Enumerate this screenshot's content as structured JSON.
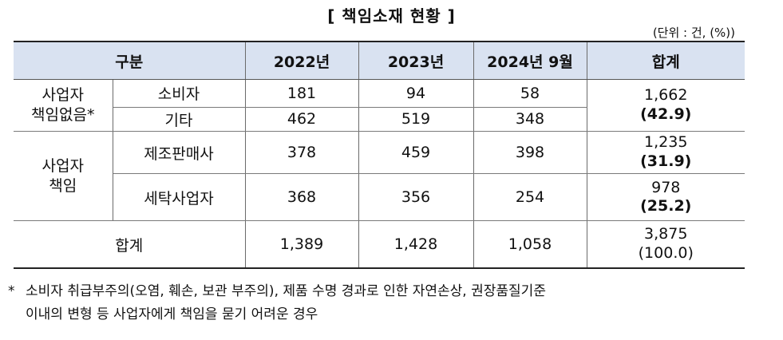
{
  "title": "[ 책임소재 현황 ]",
  "unit": "(단위 : 건, (%))",
  "header": {
    "category": "구분",
    "years": [
      "2022년",
      "2023년",
      "2024년 9월"
    ],
    "total": "합계"
  },
  "groups": [
    {
      "label_line1": "사업자",
      "label_line2": "책임없음*",
      "rows": [
        {
          "name": "소비자",
          "values": [
            "181",
            "94",
            "58"
          ]
        },
        {
          "name": "기타",
          "values": [
            "462",
            "519",
            "348"
          ]
        }
      ],
      "total": "1,662",
      "percent": "(42.9)"
    },
    {
      "label_line1": "사업자",
      "label_line2": "책임",
      "rows": [
        {
          "name": "제조판매사",
          "values": [
            "378",
            "459",
            "398"
          ],
          "total": "1,235",
          "percent": "(31.9)"
        },
        {
          "name": "세탁사업자",
          "values": [
            "368",
            "356",
            "254"
          ],
          "total": "978",
          "percent": "(25.2)"
        }
      ]
    }
  ],
  "sum_row": {
    "label": "합계",
    "values": [
      "1,389",
      "1,428",
      "1,058"
    ],
    "total": "3,875",
    "percent": "(100.0)"
  },
  "footnote": {
    "mark": "*",
    "line1": "소비자 취급부주의(오염, 훼손, 보관 부주의), 제품 수명 경과로 인한 자연손상, 권장품질기준",
    "line2": "이내의 변형 등 사업자에게 책임을 묻기 어려운 경우"
  },
  "colors": {
    "header_bg": "#d9e2f1"
  }
}
